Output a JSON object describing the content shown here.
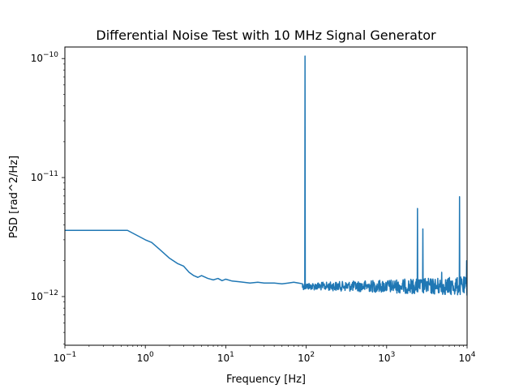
{
  "chart_data": {
    "type": "line",
    "title": "Differential Noise Test with 10 MHz Signal Generator",
    "xlabel": "Frequency [Hz]",
    "ylabel": "PSD [rad^2/Hz]",
    "xscale": "log",
    "yscale": "log",
    "xlim": [
      0.1,
      10000
    ],
    "ylim": [
      3.9e-13,
      1.25e-10
    ],
    "grid": false,
    "x_ticks": [
      {
        "value": 0.1,
        "base": "10",
        "exp": "−1"
      },
      {
        "value": 1,
        "base": "10",
        "exp": "0"
      },
      {
        "value": 10,
        "base": "10",
        "exp": "1"
      },
      {
        "value": 100,
        "base": "10",
        "exp": "2"
      },
      {
        "value": 1000,
        "base": "10",
        "exp": "3"
      },
      {
        "value": 10000,
        "base": "10",
        "exp": "4"
      }
    ],
    "y_ticks": [
      {
        "value": 1e-12,
        "base": "10",
        "exp": "−12"
      },
      {
        "value": 1e-11,
        "base": "10",
        "exp": "−11"
      },
      {
        "value": 1e-10,
        "base": "10",
        "exp": "−10"
      }
    ],
    "line_color": "#1f77b4",
    "series": [
      {
        "smooth": {
          "x": [
            0.1,
            0.6,
            1.0,
            1.2,
            1.5,
            2.0,
            2.5,
            3.0,
            3.5,
            4.0,
            4.5,
            5.0,
            6.0,
            7.0,
            8.0,
            9.0,
            10,
            12,
            15,
            20,
            25,
            30,
            40,
            50,
            60,
            70,
            80,
            90
          ],
          "y": [
            3.6e-12,
            3.6e-12,
            3e-12,
            2.85e-12,
            2.5e-12,
            2.1e-12,
            1.9e-12,
            1.8e-12,
            1.6e-12,
            1.5e-12,
            1.45e-12,
            1.5e-12,
            1.42e-12,
            1.38e-12,
            1.42e-12,
            1.36e-12,
            1.4e-12,
            1.35e-12,
            1.33e-12,
            1.3e-12,
            1.32e-12,
            1.3e-12,
            1.3e-12,
            1.28e-12,
            1.3e-12,
            1.32e-12,
            1.3e-12,
            1.28e-12
          ]
        },
        "noise_floor": {
          "x_start": 90,
          "x_end": 10000,
          "center": 1.22e-12,
          "low": 1e-12,
          "high": 1.45e-12
        },
        "peaks": [
          {
            "x": 96,
            "y": 1.05e-10
          },
          {
            "x": 2400,
            "y": 5.5e-12
          },
          {
            "x": 2800,
            "y": 3.7e-12
          },
          {
            "x": 4800,
            "y": 1.6e-12
          },
          {
            "x": 8000,
            "y": 6.9e-12
          },
          {
            "x": 9800,
            "y": 2e-12
          }
        ]
      }
    ]
  }
}
